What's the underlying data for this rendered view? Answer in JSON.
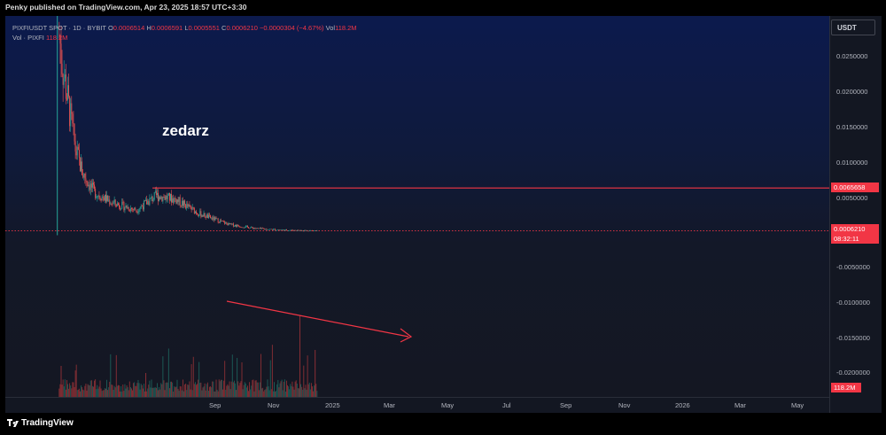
{
  "header": {
    "published": "Penky published on TradingView.com, Apr 23, 2025 18:57 UTC+3:30"
  },
  "legend": {
    "symbol": "PIXFIUSDT SPOT · 1D · BYBIT",
    "o_label": "O",
    "o_value": "0.0006514",
    "h_label": "H",
    "h_value": "0.0006591",
    "l_label": "L",
    "l_value": "0.0005551",
    "c_label": "C",
    "c_value": "0.0006210",
    "change": "−0.0000304 (−4.67%)",
    "vol_label": "Vol",
    "vol_value": "118.2M",
    "vol_row_label": "Vol · PIXFI",
    "vol_row_value": "118.2M"
  },
  "currency_button": "USDT",
  "price_ticks": [
    "0.0250000",
    "0.0200000",
    "0.0150000",
    "0.0100000",
    "0.0050000",
    "0.0000000",
    "-0.0050000",
    "-0.0100000",
    "-0.0150000",
    "-0.0200000"
  ],
  "time_labels": [
    "Sep",
    "Nov",
    "2025",
    "Mar",
    "May",
    "Jul",
    "Sep",
    "Nov",
    "2026",
    "Mar",
    "May"
  ],
  "tags": {
    "level": "0.0065658",
    "last": "0.0006210",
    "countdown": "08:32:11",
    "volume": "118.2M"
  },
  "watermark": "zedarz",
  "footer": {
    "brand": "TradingView"
  },
  "colors": {
    "up": "#26a69a",
    "down": "#ef5350",
    "line": "#f23645"
  },
  "chart_data": {
    "type": "candlestick",
    "symbol": "PIXFIUSDT",
    "interval": "1D",
    "exchange": "BYBIT",
    "y_range": [
      -0.0225,
      0.0305
    ],
    "horizontal_level": 0.0065658,
    "last_price": 0.000621,
    "approx_close_path": [
      {
        "date": "2024-07-25",
        "close": 0.029
      },
      {
        "date": "2024-07-30",
        "close": 0.023
      },
      {
        "date": "2024-08-05",
        "close": 0.018
      },
      {
        "date": "2024-08-12",
        "close": 0.012
      },
      {
        "date": "2024-08-20",
        "close": 0.0085
      },
      {
        "date": "2024-09-01",
        "close": 0.006
      },
      {
        "date": "2024-09-20",
        "close": 0.0045
      },
      {
        "date": "2024-10-15",
        "close": 0.0035
      },
      {
        "date": "2024-11-05",
        "close": 0.0055
      },
      {
        "date": "2024-11-25",
        "close": 0.005
      },
      {
        "date": "2024-12-20",
        "close": 0.003
      },
      {
        "date": "2025-01-20",
        "close": 0.0015
      },
      {
        "date": "2025-02-20",
        "close": 0.0009
      },
      {
        "date": "2025-03-20",
        "close": 0.0007
      },
      {
        "date": "2025-04-23",
        "close": 0.00062
      }
    ],
    "annotations": [
      "horizontal line at 0.0065658",
      "downward arrow over volume"
    ]
  }
}
